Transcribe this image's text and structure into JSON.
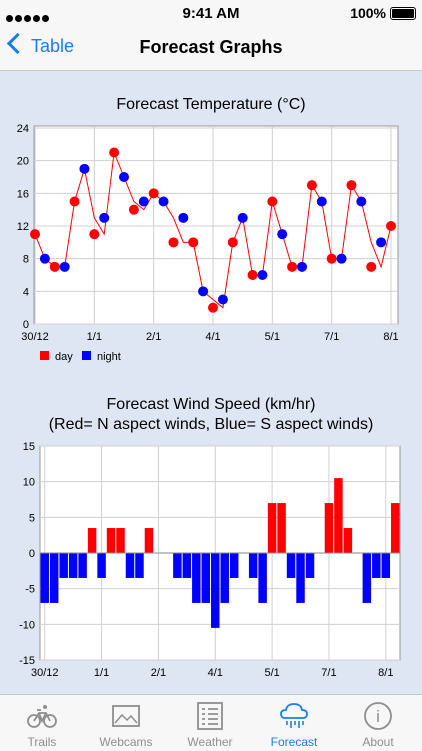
{
  "status": {
    "time": "9:41 AM",
    "battery": "100%"
  },
  "nav": {
    "back_label": "Table",
    "title": "Forecast Graphs"
  },
  "temp_chart": {
    "title": "Forecast Temperature (°C)",
    "legend": {
      "day": "day",
      "night": "night"
    },
    "colors": {
      "day": "#ff0000",
      "night": "#0000ff"
    }
  },
  "wind_chart": {
    "title_line1": "Forecast Wind Speed (km/hr)",
    "title_line2": "(Red= N aspect winds, Blue= S aspect winds)"
  },
  "chart_data": [
    {
      "type": "line",
      "title": "Forecast Temperature (°C)",
      "y_ticks": [
        0,
        4,
        8,
        12,
        16,
        20,
        24
      ],
      "ylim": [
        0,
        24
      ],
      "x_tick_labels": [
        "30/12",
        "1/1",
        "2/1",
        "4/1",
        "5/1",
        "7/1",
        "8/1"
      ],
      "x_tick_index": [
        0,
        6,
        12,
        18,
        24,
        30,
        36
      ],
      "legend_placement": "bottom-left",
      "grid": true,
      "series": [
        {
          "name": "day",
          "color": "#ff0000",
          "x": [
            0,
            2,
            4,
            6,
            8,
            10,
            12,
            14,
            16,
            18,
            20,
            22,
            24,
            26,
            28,
            30,
            32,
            34,
            36
          ],
          "values": [
            11,
            7,
            15,
            11,
            21,
            14,
            16,
            10,
            10,
            2,
            10,
            6,
            15,
            7,
            17,
            8,
            17,
            7,
            12
          ]
        },
        {
          "name": "night",
          "color": "#0000ff",
          "x": [
            1,
            3,
            5,
            7,
            9,
            11,
            13,
            15,
            17,
            19,
            21,
            23,
            25,
            27,
            29,
            31,
            33,
            35
          ],
          "values": [
            8,
            7,
            19,
            13,
            18,
            15,
            15,
            13,
            4,
            3,
            13,
            6,
            11,
            7,
            15,
            8,
            15,
            10
          ]
        }
      ],
      "connected_sequence": [
        11,
        8,
        7,
        7,
        15,
        19,
        13,
        11,
        21,
        18,
        15,
        14,
        16,
        15,
        13,
        10,
        10,
        4,
        3,
        2,
        10,
        13,
        6,
        6,
        15,
        11,
        7,
        7,
        17,
        15,
        8,
        8,
        17,
        15,
        10,
        7,
        12
      ]
    },
    {
      "type": "bar",
      "title": "Forecast Wind Speed (km/hr)",
      "subtitle": "(Red= N aspect winds, Blue= S aspect winds)",
      "y_ticks": [
        -15,
        -10,
        -5,
        0,
        5,
        10,
        15
      ],
      "ylim": [
        -15,
        15
      ],
      "x_tick_labels": [
        "30/12",
        "1/1",
        "2/1",
        "4/1",
        "5/1",
        "7/1",
        "8/1"
      ],
      "x_tick_index": [
        0,
        6,
        12,
        18,
        24,
        30,
        36
      ],
      "grid": true,
      "colors": {
        "positive": "#ff0000",
        "negative": "#0000ff"
      },
      "values": [
        -7,
        -7,
        -3.5,
        -3.5,
        -3.5,
        3.5,
        -3.5,
        3.5,
        3.5,
        -3.5,
        -3.5,
        3.5,
        0,
        0,
        -3.5,
        -3.5,
        -7,
        -7,
        -10.5,
        -7,
        -3.5,
        0,
        -3.5,
        -7,
        7,
        7,
        -3.5,
        -7,
        -3.5,
        0,
        7,
        10.5,
        3.5,
        0,
        -7,
        -3.5,
        -3.5,
        7
      ]
    }
  ],
  "tabs": [
    {
      "label": "Trails",
      "icon": "bicycle-icon"
    },
    {
      "label": "Webcams",
      "icon": "image-icon"
    },
    {
      "label": "Weather",
      "icon": "list-icon"
    },
    {
      "label": "Forecast",
      "icon": "rain-cloud-icon"
    },
    {
      "label": "About",
      "icon": "info-icon"
    }
  ]
}
